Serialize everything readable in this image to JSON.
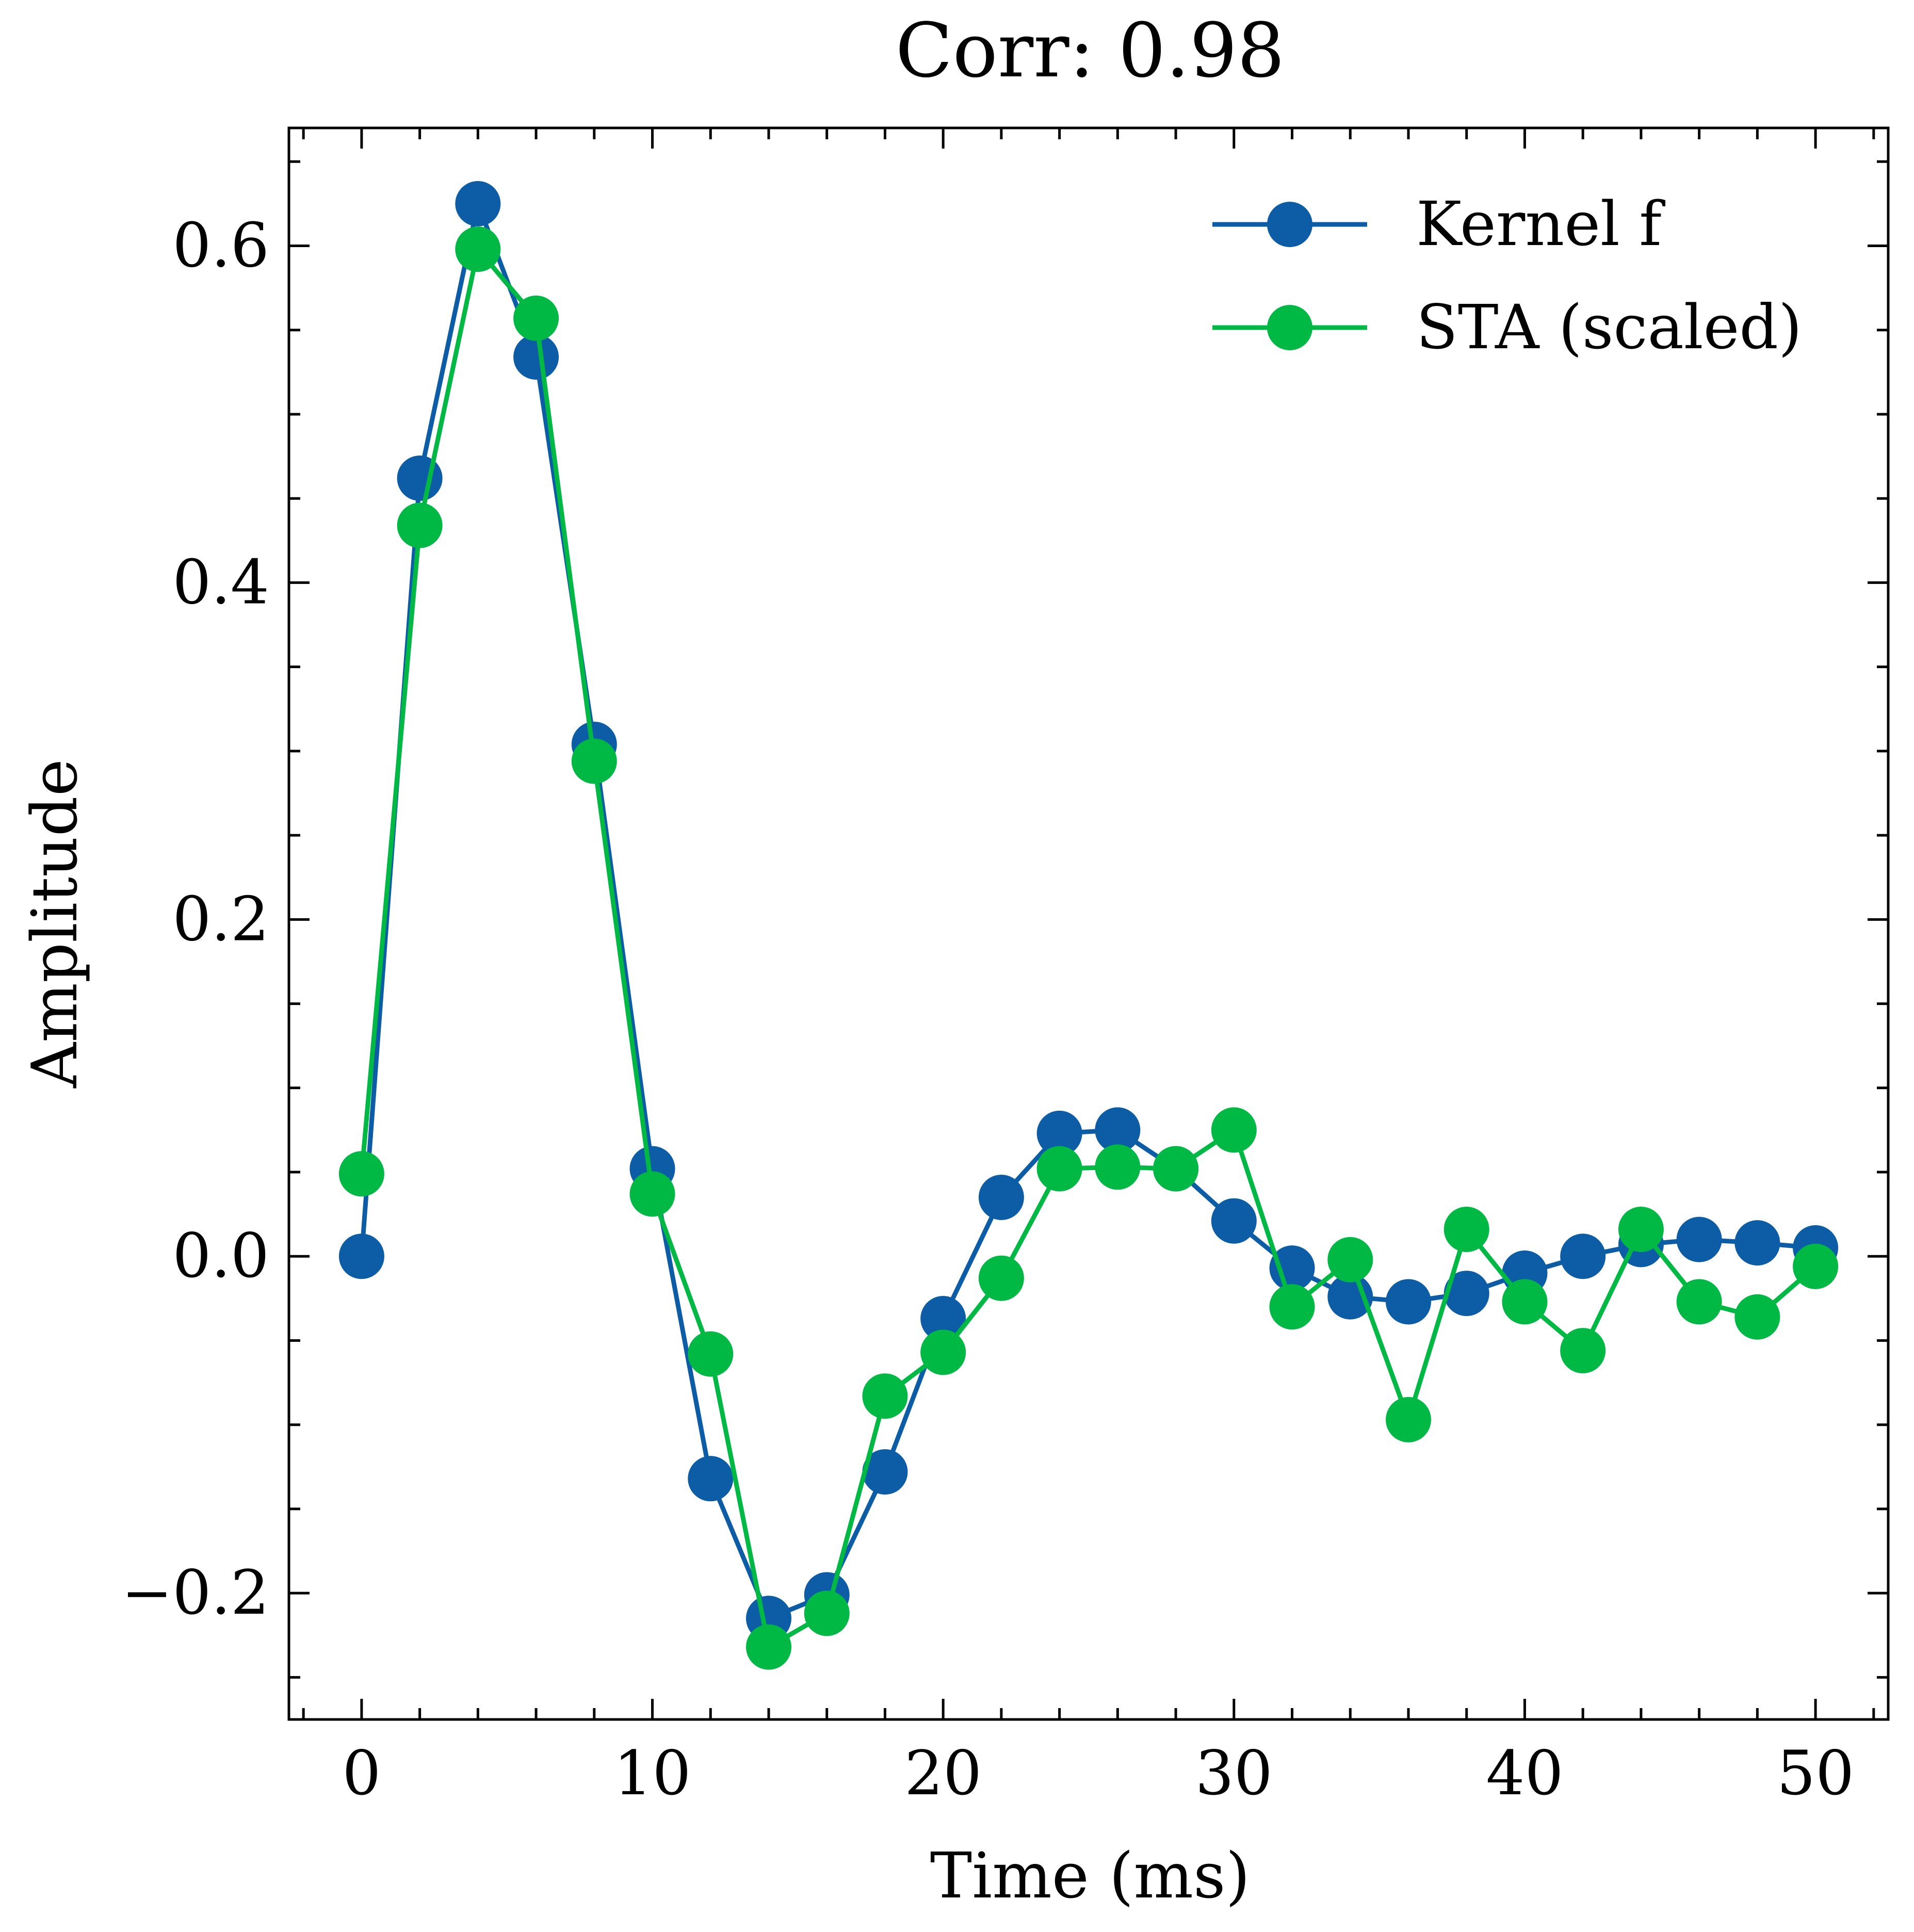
{
  "chart_data": {
    "type": "line",
    "title": "Corr: 0.98",
    "xlabel": "Time (ms)",
    "ylabel": "Amplitude",
    "xlim": [
      -2.5,
      52.5
    ],
    "ylim": [
      -0.275,
      0.67
    ],
    "x_ticks": [
      0,
      10,
      20,
      30,
      40,
      50
    ],
    "x_tick_labels": [
      "0",
      "10",
      "20",
      "30",
      "40",
      "50"
    ],
    "y_ticks": [
      -0.2,
      0.0,
      0.2,
      0.4,
      0.6
    ],
    "y_tick_labels": [
      "−0.2",
      "0.0",
      "0.2",
      "0.4",
      "0.6"
    ],
    "grid": false,
    "legend_position": "upper right",
    "x": [
      0,
      2,
      4,
      6,
      8,
      10,
      12,
      14,
      16,
      18,
      20,
      22,
      24,
      26,
      28,
      30,
      32,
      34,
      36,
      38,
      40,
      42,
      44,
      46,
      48,
      50
    ],
    "series": [
      {
        "name": "Kernel f",
        "color": "#0C5DA5",
        "marker": "circle",
        "values": [
          0.0,
          0.462,
          0.625,
          0.534,
          0.304,
          0.052,
          -0.132,
          -0.215,
          -0.201,
          -0.128,
          -0.037,
          0.035,
          0.073,
          0.075,
          0.052,
          0.021,
          -0.007,
          -0.024,
          -0.027,
          -0.022,
          -0.01,
          0.0,
          0.007,
          0.01,
          0.008,
          0.005
        ]
      },
      {
        "name": "STA (scaled)",
        "color": "#00B945",
        "marker": "circle",
        "values": [
          0.049,
          0.434,
          0.598,
          0.557,
          0.294,
          0.037,
          -0.058,
          -0.232,
          -0.212,
          -0.083,
          -0.057,
          -0.013,
          0.052,
          0.053,
          0.052,
          0.075,
          -0.03,
          -0.002,
          -0.097,
          0.016,
          -0.027,
          -0.056,
          0.016,
          -0.027,
          -0.036,
          -0.006
        ]
      }
    ]
  }
}
